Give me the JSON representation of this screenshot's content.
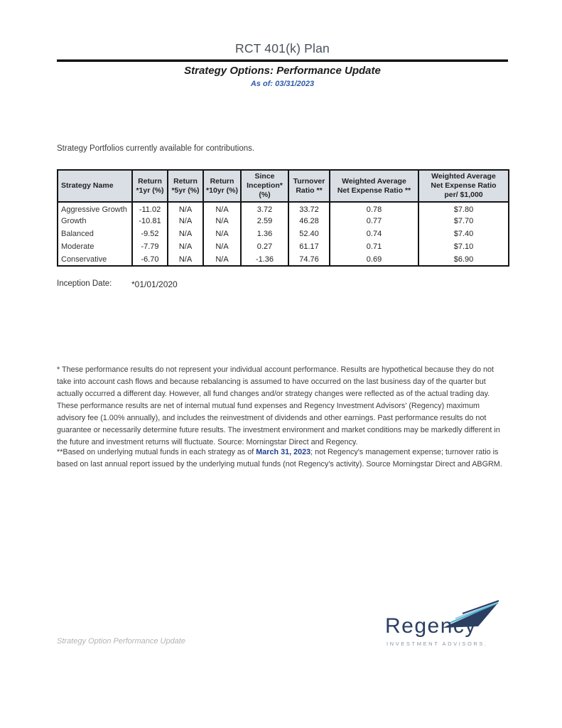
{
  "page": {
    "title": "RCT 401(k) Plan",
    "subtitle": "Strategy Options: Performance Update",
    "as_of": "As of: 03/31/2023"
  },
  "intro_text": "Strategy Portfolios currently available for contributions.",
  "table": {
    "columns": [
      "Strategy Name",
      "Return\n*1yr (%)",
      "Return\n*5yr (%)",
      "Return\n*10yr (%)",
      "Since\nInception* (%)",
      "Turnover\nRatio **",
      "Weighted Average\nNet Expense Ratio **",
      "Weighted Average\nNet Expense Ratio\nper/ $1,000"
    ],
    "rows": [
      [
        "Aggressive Growth",
        "-11.02",
        "N/A",
        "N/A",
        "3.72",
        "33.72",
        "0.78",
        "$7.80"
      ],
      [
        "Growth",
        "-10.81",
        "N/A",
        "N/A",
        "2.59",
        "46.28",
        "0.77",
        "$7.70"
      ],
      [
        "Balanced",
        "-9.52",
        "N/A",
        "N/A",
        "1.36",
        "52.40",
        "0.74",
        "$7.40"
      ],
      [
        "Moderate",
        "-7.79",
        "N/A",
        "N/A",
        "0.27",
        "61.17",
        "0.71",
        "$7.10"
      ],
      [
        "Conservative",
        "-6.70",
        "N/A",
        "N/A",
        "-1.36",
        "74.76",
        "0.69",
        "$6.90"
      ]
    ]
  },
  "inception": {
    "label": "Inception Date:",
    "value": "*01/01/2020"
  },
  "disclaimers": {
    "p1": "* These performance results do not represent your individual account performance.  Results are hypothetical because they do not take into account cash flows and because rebalancing is assumed to have occurred on the last business day of the quarter but actually occurred a different day.  However, all fund changes and/or strategy changes were reflected as of the actual trading day. These performance results are net of internal mutual fund expenses and Regency Investment Advisors' (Regency) maximum advisory fee (1.00% annually), and includes the reinvestment of dividends and other earnings.  Past performance results do not guarantee or necessarily determine future results.  The investment environment and market conditions may be markedly different in the future and investment returns will fluctuate. Source: Morningstar Direct and Regency.",
    "p2_before": "**Based on underlying mutual funds in each strategy as of ",
    "p2_date": "March 31, 2023",
    "p2_after": "; not Regency's management expense; turnover ratio is based on last annual report  issued by the underlying mutual funds (not Regency's activity). Source Morningstar Direct and ABGRM."
  },
  "footer": {
    "left_text": "Strategy Option Performance Update",
    "logo_name": "Regency",
    "logo_tagline": "INVESTMENT ADVISORS."
  },
  "colors": {
    "title_gray": "#49525c",
    "accent_blue": "#2e5aa8",
    "date_blue": "#1f3f8f",
    "table_header_fill": "#d9dfe5",
    "logo_navy": "#2b3f63",
    "logo_teal": "#3ab5c9",
    "logo_light_blue": "#9cc3e5",
    "logo_tagline_gray": "#8a97a8"
  }
}
